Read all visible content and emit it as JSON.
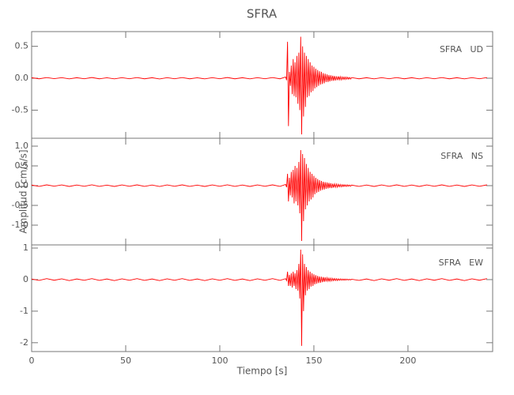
{
  "chart_data": [
    {
      "type": "line",
      "title": "SFRA",
      "annotation": "SFRA   UD",
      "color": "#ff0000",
      "xlim": [
        0,
        245
      ],
      "xticks": [
        0,
        50,
        100,
        150,
        200
      ],
      "ylim": [
        -0.94,
        0.73
      ],
      "yticks": [
        0.5,
        {
          "value": 0,
          "label": "0.0"
        },
        -0.5
      ],
      "x": [
        0,
        4,
        8,
        12,
        16,
        20,
        24,
        28,
        32,
        36,
        40,
        44,
        48,
        52,
        56,
        60,
        64,
        68,
        72,
        76,
        80,
        84,
        88,
        92,
        96,
        100,
        104,
        108,
        112,
        116,
        120,
        124,
        128,
        132,
        135,
        135.5,
        136,
        136.5,
        137,
        137.5,
        138,
        138.5,
        139,
        139.5,
        140,
        140.5,
        141,
        141.5,
        142,
        142.5,
        143,
        143.5,
        144,
        144.5,
        145,
        145.5,
        146,
        146.5,
        147,
        147.5,
        148,
        148.5,
        149,
        149.5,
        150,
        150.5,
        151,
        151.5,
        152,
        152.5,
        153,
        153.5,
        154,
        154.5,
        155,
        155.5,
        156,
        156.5,
        157,
        157.5,
        158,
        158.5,
        159,
        159.5,
        160,
        160.5,
        161,
        161.5,
        162,
        162.5,
        163,
        163.5,
        164,
        164.5,
        165,
        165.5,
        166,
        166.5,
        167,
        167.5,
        168,
        168.5,
        169,
        169.5,
        170,
        174,
        178,
        182,
        186,
        190,
        194,
        198,
        202,
        206,
        210,
        214,
        218,
        222,
        226,
        230,
        234,
        238,
        242
      ],
      "values": [
        0.008,
        -0.009,
        0.01,
        -0.007,
        0.009,
        -0.01,
        0.008,
        -0.008,
        0.011,
        -0.009,
        0.007,
        -0.01,
        0.009,
        -0.008,
        0.01,
        -0.009,
        0.008,
        -0.011,
        0.009,
        -0.008,
        0.01,
        -0.009,
        0.007,
        -0.01,
        0.009,
        -0.008,
        0.011,
        -0.009,
        0.008,
        -0.01,
        0.009,
        -0.008,
        0.01,
        -0.009,
        0.02,
        -0.03,
        0.57,
        -0.75,
        0.1,
        -0.12,
        0.2,
        -0.25,
        0.3,
        -0.28,
        0.25,
        -0.3,
        0.35,
        -0.4,
        0.4,
        -0.5,
        0.65,
        -0.88,
        0.5,
        -0.6,
        0.4,
        -0.45,
        0.35,
        -0.3,
        0.3,
        -0.28,
        0.25,
        -0.22,
        0.2,
        -0.2,
        0.18,
        -0.16,
        0.15,
        -0.14,
        0.13,
        -0.12,
        0.11,
        -0.1,
        0.1,
        -0.09,
        0.08,
        -0.08,
        0.07,
        -0.06,
        0.06,
        -0.06,
        0.05,
        -0.05,
        0.045,
        -0.04,
        0.04,
        -0.04,
        0.035,
        -0.035,
        0.03,
        -0.03,
        0.03,
        -0.025,
        0.025,
        -0.025,
        0.02,
        -0.02,
        0.02,
        -0.02,
        0.018,
        -0.015,
        0.015,
        -0.015,
        0.012,
        -0.012,
        0.01,
        -0.009,
        0.008,
        -0.01,
        0.009,
        -0.008,
        0.01,
        -0.009,
        0.008,
        -0.01,
        0.009,
        -0.008,
        0.01,
        -0.009,
        0.008,
        -0.01,
        0.009,
        -0.008,
        0.01
      ]
    },
    {
      "type": "line",
      "ylabel": "Amplitud [cm/s/s]",
      "annotation": "SFRA   NS",
      "color": "#ff0000",
      "xlim": [
        0,
        245
      ],
      "xticks": [
        0,
        50,
        100,
        150,
        200
      ],
      "ylim": [
        -1.5,
        1.2
      ],
      "yticks": [
        {
          "value": 1,
          "label": "1.0"
        },
        0.5,
        {
          "value": 0,
          "label": "0.0"
        },
        -0.5,
        {
          "value": -1,
          "label": "-1.0"
        }
      ],
      "x": [
        0,
        4,
        8,
        12,
        16,
        20,
        24,
        28,
        32,
        36,
        40,
        44,
        48,
        52,
        56,
        60,
        64,
        68,
        72,
        76,
        80,
        84,
        88,
        92,
        96,
        100,
        104,
        108,
        112,
        116,
        120,
        124,
        128,
        132,
        135,
        135.5,
        136,
        136.5,
        137,
        137.5,
        138,
        138.5,
        139,
        139.5,
        140,
        140.5,
        141,
        141.5,
        142,
        142.5,
        143,
        143.5,
        144,
        144.5,
        145,
        145.5,
        146,
        146.5,
        147,
        147.5,
        148,
        148.5,
        149,
        149.5,
        150,
        150.5,
        151,
        151.5,
        152,
        152.5,
        153,
        153.5,
        154,
        154.5,
        155,
        155.5,
        156,
        156.5,
        157,
        157.5,
        158,
        158.5,
        159,
        159.5,
        160,
        160.5,
        161,
        161.5,
        162,
        162.5,
        163,
        163.5,
        164,
        164.5,
        165,
        165.5,
        166,
        166.5,
        167,
        167.5,
        168,
        168.5,
        169,
        169.5,
        170,
        174,
        178,
        182,
        186,
        190,
        194,
        198,
        202,
        206,
        210,
        214,
        218,
        222,
        226,
        230,
        234,
        238,
        242
      ],
      "values": [
        0.015,
        -0.018,
        0.02,
        -0.014,
        0.018,
        -0.02,
        0.016,
        -0.016,
        0.022,
        -0.018,
        0.014,
        -0.02,
        0.018,
        -0.016,
        0.02,
        -0.018,
        0.016,
        -0.022,
        0.018,
        -0.016,
        0.02,
        -0.018,
        0.014,
        -0.02,
        0.018,
        -0.016,
        0.022,
        -0.018,
        0.016,
        -0.02,
        0.018,
        -0.016,
        0.02,
        -0.018,
        0.03,
        -0.04,
        0.3,
        -0.4,
        0.2,
        -0.25,
        0.35,
        -0.3,
        0.4,
        -0.45,
        0.5,
        -0.4,
        0.45,
        -0.5,
        0.6,
        -0.7,
        0.9,
        -1.4,
        0.8,
        -0.9,
        0.7,
        -0.6,
        0.55,
        -0.5,
        0.45,
        -0.4,
        0.35,
        -0.35,
        0.3,
        -0.3,
        0.25,
        -0.22,
        0.2,
        -0.18,
        0.17,
        -0.16,
        0.14,
        -0.13,
        0.12,
        -0.11,
        0.1,
        -0.1,
        0.09,
        -0.08,
        0.08,
        -0.07,
        0.07,
        -0.06,
        0.06,
        -0.06,
        0.05,
        -0.05,
        0.045,
        -0.04,
        0.04,
        -0.04,
        0.035,
        -0.03,
        0.03,
        -0.03,
        0.025,
        -0.025,
        0.025,
        -0.02,
        0.02,
        -0.02,
        0.02,
        -0.015,
        0.015,
        -0.015,
        0.015,
        -0.018,
        0.016,
        -0.02,
        0.018,
        -0.016,
        0.02,
        -0.018,
        0.016,
        -0.02,
        0.018,
        -0.016,
        0.02,
        -0.018,
        0.016,
        -0.02,
        0.018,
        -0.016,
        0.02
      ]
    },
    {
      "type": "line",
      "xlabel": "Tiempo [s]",
      "annotation": "SFRA   EW",
      "color": "#ff0000",
      "xlim": [
        0,
        245
      ],
      "xticks": [
        0,
        50,
        100,
        150,
        200
      ],
      "ylim": [
        -2.28,
        1.1
      ],
      "yticks": [
        1,
        0,
        -1,
        -2
      ],
      "x": [
        0,
        4,
        8,
        12,
        16,
        20,
        24,
        28,
        32,
        36,
        40,
        44,
        48,
        52,
        56,
        60,
        64,
        68,
        72,
        76,
        80,
        84,
        88,
        92,
        96,
        100,
        104,
        108,
        112,
        116,
        120,
        124,
        128,
        132,
        135,
        135.5,
        136,
        136.5,
        137,
        137.5,
        138,
        138.5,
        139,
        139.5,
        140,
        140.5,
        141,
        141.5,
        142,
        142.5,
        143,
        143.5,
        144,
        144.5,
        145,
        145.5,
        146,
        146.5,
        147,
        147.5,
        148,
        148.5,
        149,
        149.5,
        150,
        150.5,
        151,
        151.5,
        152,
        152.5,
        153,
        153.5,
        154,
        154.5,
        155,
        155.5,
        156,
        156.5,
        157,
        157.5,
        158,
        158.5,
        159,
        159.5,
        160,
        160.5,
        161,
        161.5,
        162,
        162.5,
        163,
        163.5,
        164,
        164.5,
        165,
        165.5,
        166,
        166.5,
        167,
        167.5,
        168,
        168.5,
        169,
        169.5,
        170,
        174,
        178,
        182,
        186,
        190,
        194,
        198,
        202,
        206,
        210,
        214,
        218,
        222,
        226,
        230,
        234,
        238,
        242
      ],
      "values": [
        0.02,
        -0.025,
        0.03,
        -0.02,
        0.025,
        -0.03,
        0.02,
        -0.022,
        0.03,
        -0.025,
        0.02,
        -0.03,
        0.025,
        -0.022,
        0.03,
        -0.025,
        0.02,
        -0.03,
        0.025,
        -0.022,
        0.03,
        -0.025,
        0.02,
        -0.03,
        0.025,
        -0.022,
        0.03,
        -0.025,
        0.02,
        -0.03,
        0.025,
        -0.022,
        0.03,
        -0.025,
        0.03,
        -0.03,
        0.25,
        -0.2,
        0.15,
        -0.2,
        0.2,
        -0.25,
        0.25,
        -0.2,
        0.2,
        -0.3,
        0.3,
        -0.35,
        0.5,
        -0.6,
        0.95,
        -2.1,
        0.8,
        -1.0,
        0.5,
        -0.5,
        0.4,
        -0.35,
        0.3,
        -0.3,
        0.25,
        -0.22,
        0.2,
        -0.2,
        0.17,
        -0.15,
        0.14,
        -0.13,
        0.12,
        -0.11,
        0.1,
        -0.1,
        0.09,
        -0.08,
        0.08,
        -0.07,
        0.07,
        -0.06,
        0.06,
        -0.05,
        0.05,
        -0.05,
        0.045,
        -0.04,
        0.04,
        -0.035,
        0.035,
        -0.03,
        0.03,
        -0.03,
        0.025,
        -0.025,
        0.025,
        -0.02,
        0.02,
        -0.02,
        0.02,
        -0.02,
        0.018,
        -0.015,
        0.015,
        -0.015,
        0.012,
        -0.012,
        0.012,
        -0.025,
        0.02,
        -0.03,
        0.025,
        -0.02,
        0.03,
        -0.025,
        0.02,
        -0.03,
        0.025,
        -0.02,
        0.03,
        -0.025,
        0.02,
        -0.03,
        0.025,
        -0.02,
        0.03
      ]
    }
  ]
}
